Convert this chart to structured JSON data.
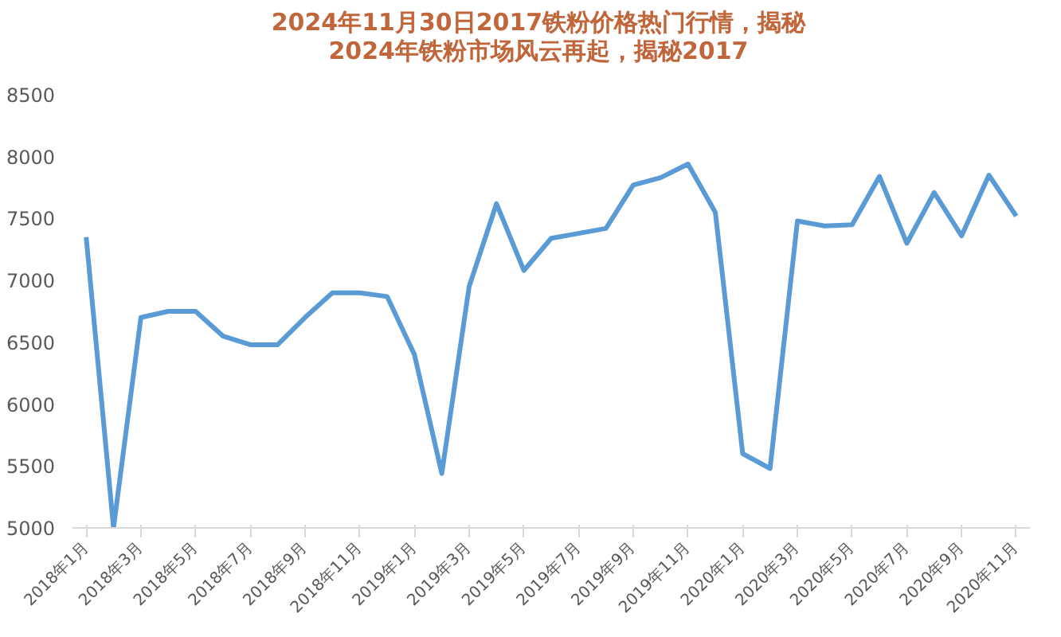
{
  "chart_data": {
    "type": "line",
    "title": "2024年11月30日2017铁粉价格热门行情，揭秘2024年铁粉市场风云再起，揭秘2017",
    "categories": [
      "2018年1月",
      null,
      "2018年3月",
      null,
      "2018年5月",
      null,
      "2018年7月",
      null,
      "2018年9月",
      null,
      "2018年11月",
      null,
      "2019年1月",
      null,
      "2019年3月",
      null,
      "2019年5月",
      null,
      "2019年7月",
      null,
      "2019年9月",
      null,
      "2019年11月",
      null,
      "2020年1月",
      null,
      "2020年3月",
      null,
      "2020年5月",
      null,
      "2020年7月",
      null,
      "2020年9月",
      null,
      "2020年11月"
    ],
    "series": [
      {
        "color": "#5b9bd5",
        "values": [
          7350,
          5000,
          6700,
          6750,
          6750,
          6550,
          6480,
          6480,
          6700,
          6900,
          6900,
          6870,
          6400,
          5440,
          6950,
          7620,
          7080,
          7340,
          7380,
          7420,
          7770,
          7830,
          7940,
          7550,
          5600,
          5480,
          7480,
          7440,
          7450,
          7840,
          7300,
          7710,
          7360,
          7850,
          7520
        ]
      }
    ],
    "ylim": [
      5000,
      8500
    ],
    "yticks": [
      5000,
      5500,
      6000,
      6500,
      7000,
      7500,
      8000,
      8500
    ],
    "grid": false,
    "marker": "none",
    "line_style": "solid"
  }
}
